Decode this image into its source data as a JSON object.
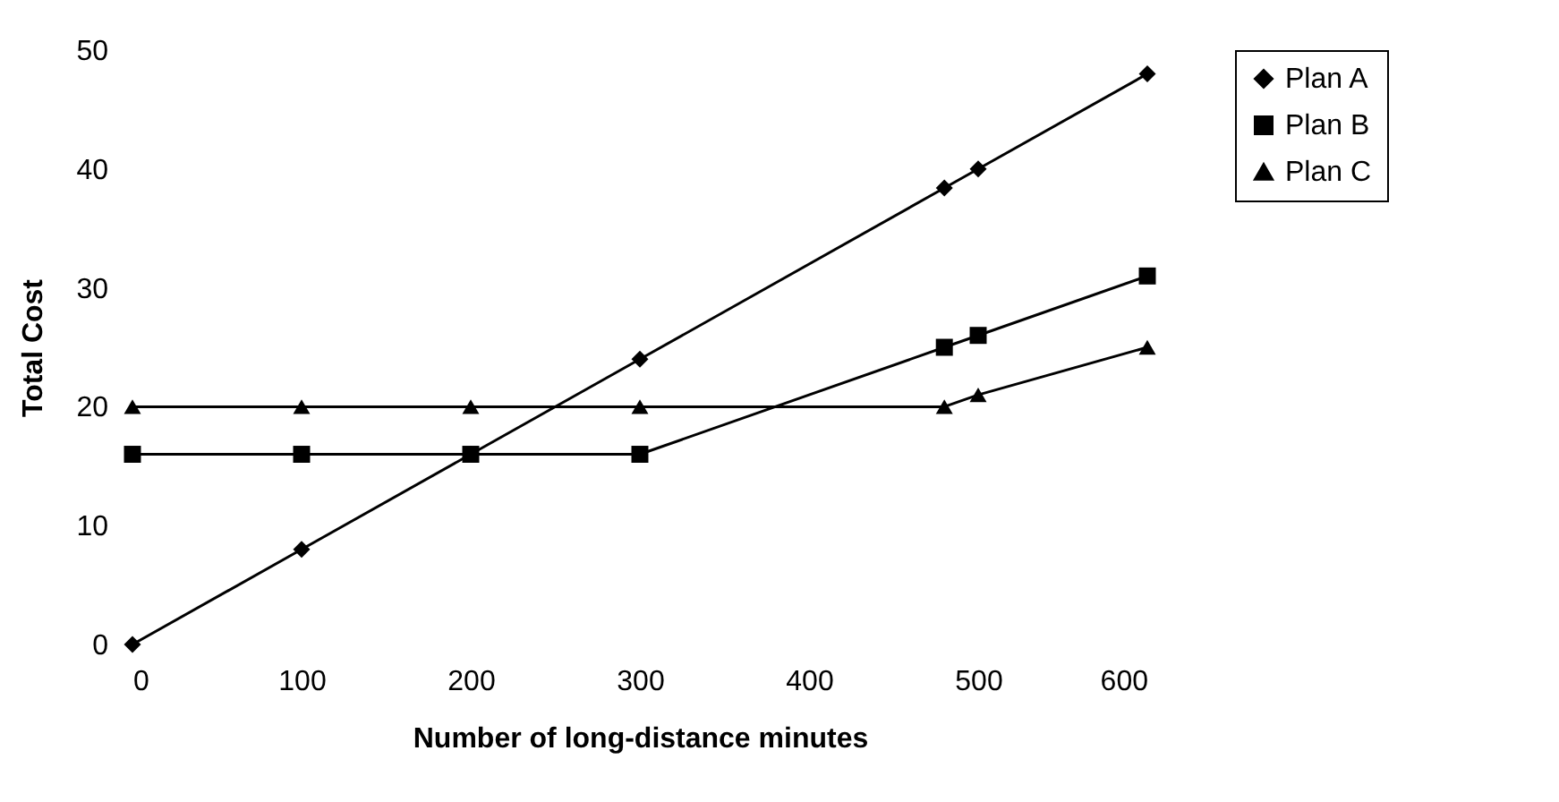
{
  "chart_data": {
    "type": "line",
    "xlabel": "Number of long-distance minutes",
    "ylabel": "Total Cost",
    "x": [
      0,
      100,
      200,
      300,
      480,
      500,
      600
    ],
    "series": [
      {
        "name": "Plan A",
        "color": "#000000",
        "marker": "diamond",
        "values": [
          0,
          8,
          16,
          24,
          38.4,
          40,
          48
        ]
      },
      {
        "name": "Plan B",
        "color": "#000000",
        "marker": "square",
        "values": [
          16,
          16,
          16,
          16,
          25,
          26,
          31
        ]
      },
      {
        "name": "Plan C",
        "color": "#000000",
        "marker": "triangle",
        "values": [
          20,
          20,
          20,
          20,
          20,
          21,
          25
        ]
      }
    ],
    "xlim": [
      0,
      600
    ],
    "xticks": [
      0,
      100,
      200,
      300,
      400,
      500,
      600
    ],
    "ylim": [
      0,
      50
    ],
    "yticks": [
      0,
      10,
      20,
      30,
      40,
      50
    ],
    "grid": false,
    "legend": "right",
    "line_style": "solid"
  }
}
